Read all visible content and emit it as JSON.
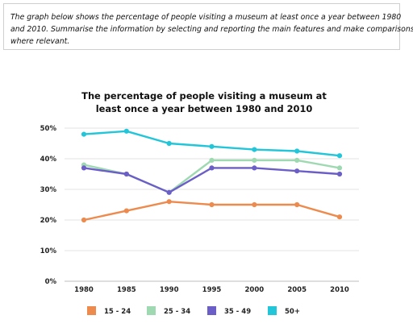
{
  "prompt": {
    "lines": [
      "The graph below shows the percentage of people visiting a museum at least once a year between 1980",
      "and 2010. Summarise the information by selecting and reporting the main features and make comparisons",
      "where relevant."
    ]
  },
  "chart_data": {
    "type": "line",
    "title_lines": [
      "The percentage of people visiting a museum at",
      "least once a year between 1980 and 2010"
    ],
    "xlabel": "",
    "ylabel": "",
    "x": [
      "1980",
      "1985",
      "1990",
      "1995",
      "2000",
      "2005",
      "2010"
    ],
    "ylim": [
      0,
      50
    ],
    "yticks": [
      0,
      10,
      20,
      30,
      40,
      50
    ],
    "ytick_labels": [
      "0%",
      "10%",
      "20%",
      "30%",
      "40%",
      "50%"
    ],
    "grid": true,
    "legend_position": "bottom",
    "series": [
      {
        "name": "15 - 24",
        "color": "#ED8B4E",
        "values": [
          20,
          23,
          26,
          25,
          25,
          25,
          21
        ]
      },
      {
        "name": "25 - 34",
        "color": "#9FD9B1",
        "values": [
          38,
          35,
          29,
          39.5,
          39.5,
          39.5,
          37
        ]
      },
      {
        "name": "35 - 49",
        "color": "#6B5FC7",
        "values": [
          37,
          35,
          29,
          37,
          37,
          36,
          35
        ]
      },
      {
        "name": "50+",
        "color": "#22C6D8",
        "values": [
          48,
          49,
          45,
          44,
          43,
          42.5,
          41
        ]
      }
    ]
  }
}
